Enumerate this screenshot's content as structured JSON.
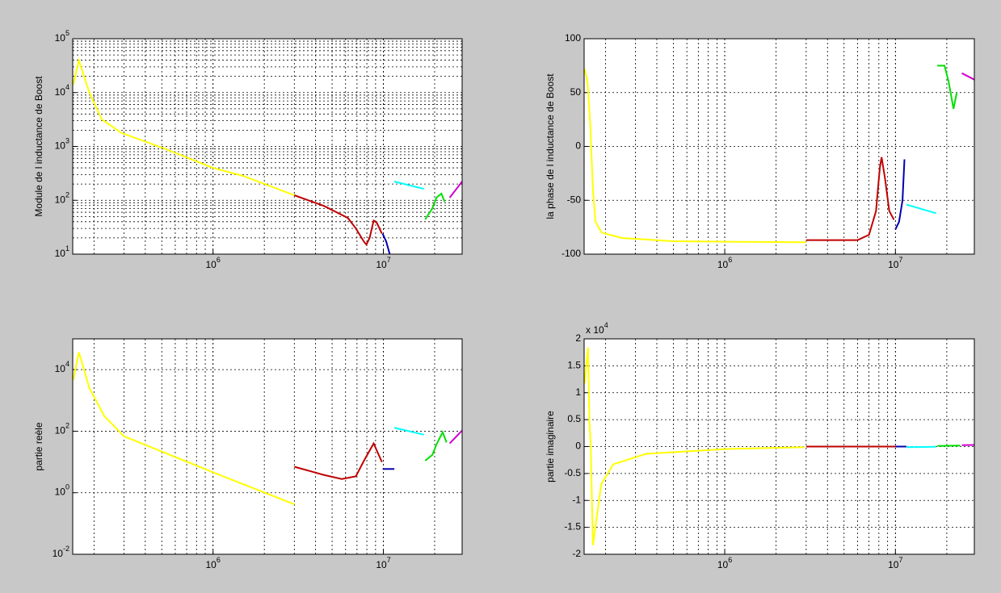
{
  "chart_data": [
    {
      "type": "line",
      "ylabel": "Module de l inductance de Boost",
      "xscale": "log",
      "yscale": "log",
      "xlim": [
        150000,
        29000000
      ],
      "ylim": [
        10,
        100000
      ],
      "xticks": [
        {
          "value": 1000000,
          "label": "10",
          "sup": "6"
        },
        {
          "value": 10000000,
          "label": "10",
          "sup": "7"
        }
      ],
      "yticks": [
        {
          "value": 10,
          "label": "10",
          "sup": "1"
        },
        {
          "value": 100,
          "label": "10",
          "sup": "2"
        },
        {
          "value": 1000,
          "label": "10",
          "sup": "3"
        },
        {
          "value": 10000,
          "label": "10",
          "sup": "4"
        },
        {
          "value": 100000,
          "label": "10",
          "sup": "5"
        }
      ],
      "grid": true,
      "x_minor_grid": true,
      "y_minor_grid": true,
      "series": [
        {
          "color": "#ffff00",
          "x": [
            151000,
            163000,
            188000,
            222000,
            291000,
            502000,
            1000000,
            1500000,
            3000000
          ],
          "values": [
            14000,
            39500,
            9900,
            3180,
            1770,
            950,
            400,
            284,
            124
          ]
        },
        {
          "color": "#c00000",
          "x": [
            3000000,
            4460000,
            6180000,
            6900000,
            7690000,
            7950000,
            8300000,
            8770000,
            9160000,
            9800000
          ],
          "values": [
            124,
            79,
            47,
            30,
            17,
            15,
            20,
            42,
            38,
            24
          ]
        },
        {
          "color": "#0000b0",
          "x": [
            9900000,
            10400000,
            10900000
          ],
          "values": [
            24,
            17,
            10
          ]
        },
        {
          "color": "#00ffff",
          "x": [
            11600000,
            17300000
          ],
          "values": [
            223,
            163
          ]
        },
        {
          "color": "#00e000",
          "x": [
            17600000,
            19400000,
            20500000,
            21900000,
            22900000
          ],
          "values": [
            44,
            71,
            112,
            133,
            94
          ]
        },
        {
          "color": "#d000d0",
          "x": [
            24500000,
            29000000
          ],
          "values": [
            112,
            223
          ]
        }
      ]
    },
    {
      "type": "line",
      "ylabel": "la phase de l inductance de Boost",
      "xscale": "log",
      "yscale": "linear",
      "xlim": [
        150000,
        29000000
      ],
      "ylim": [
        -100,
        100
      ],
      "xticks": [
        {
          "value": 1000000,
          "label": "10",
          "sup": "6"
        },
        {
          "value": 10000000,
          "label": "10",
          "sup": "7"
        }
      ],
      "yticks": [
        -100,
        -50,
        0,
        50,
        100
      ],
      "grid": true,
      "x_minor_grid": true,
      "y_minor_grid": false,
      "series": [
        {
          "color": "#ffff00",
          "x": [
            151000,
            157000,
            163000,
            169000,
            175000,
            190000,
            250000,
            500000,
            1000000,
            3000000
          ],
          "values": [
            72,
            60,
            20,
            -40,
            -70,
            -80,
            -85,
            -88,
            -88.5,
            -89
          ]
        },
        {
          "color": "#c00000",
          "x": [
            3000000,
            6000000,
            7000000,
            7700000,
            8100000,
            8300000,
            8700000,
            9200000,
            9800000
          ],
          "values": [
            -87,
            -87,
            -82,
            -60,
            -20,
            -10,
            -30,
            -60,
            -68
          ]
        },
        {
          "color": "#0000b0",
          "x": [
            10000000,
            10500000,
            11000000,
            11300000
          ],
          "values": [
            -77,
            -70,
            -50,
            -12
          ]
        },
        {
          "color": "#00ffff",
          "x": [
            11600000,
            17300000
          ],
          "values": [
            -54,
            -62
          ]
        },
        {
          "color": "#00e000",
          "x": [
            17600000,
            19400000,
            20500000,
            21900000,
            22900000
          ],
          "values": [
            75,
            75,
            60,
            35,
            50
          ]
        },
        {
          "color": "#d000d0",
          "x": [
            24500000,
            29000000
          ],
          "values": [
            68,
            62
          ]
        }
      ]
    },
    {
      "type": "line",
      "ylabel": "partie reèle",
      "xscale": "log",
      "yscale": "log",
      "xlim": [
        150000,
        29000000
      ],
      "ylim": [
        0.01,
        100000
      ],
      "xticks": [
        {
          "value": 1000000,
          "label": "10",
          "sup": "6"
        },
        {
          "value": 10000000,
          "label": "10",
          "sup": "7"
        }
      ],
      "yticks": [
        {
          "value": 0.01,
          "label": "10",
          "sup": "-2"
        },
        {
          "value": 1,
          "label": "10",
          "sup": "0"
        },
        {
          "value": 100,
          "label": "10",
          "sup": "2"
        },
        {
          "value": 10000,
          "label": "10",
          "sup": "4"
        }
      ],
      "grid": true,
      "x_minor_grid": true,
      "y_minor_grid": false,
      "series": [
        {
          "color": "#ffff00",
          "x": [
            151000,
            163000,
            188000,
            230000,
            300000,
            1000000,
            3000000
          ],
          "values": [
            4600,
            37000,
            2500,
            310,
            68,
            4.6,
            0.42
          ]
        },
        {
          "color": "#c00000",
          "x": [
            3000000,
            4460000,
            5700000,
            6900000,
            7690000,
            8770000,
            9800000
          ],
          "values": [
            7,
            3.8,
            2.8,
            3.4,
            11,
            40,
            10
          ]
        },
        {
          "color": "#0000b0",
          "x": [
            9900000,
            11600000
          ],
          "values": [
            5.9,
            5.9
          ]
        },
        {
          "color": "#00ffff",
          "x": [
            11600000,
            17300000
          ],
          "values": [
            130,
            77
          ]
        },
        {
          "color": "#00e000",
          "x": [
            17600000,
            19400000,
            20500000,
            22300000,
            23500000
          ],
          "values": [
            11,
            17,
            37,
            93,
            43
          ]
        },
        {
          "color": "#d000d0",
          "x": [
            24500000,
            29000000
          ],
          "values": [
            40,
            105
          ]
        }
      ]
    },
    {
      "type": "line",
      "ylabel": "partie imaginaire",
      "xscale": "log",
      "yscale": "linear",
      "xlim": [
        150000,
        29000000
      ],
      "ylim": [
        -20000,
        20000
      ],
      "y_multiplier": {
        "label": "x 10",
        "sup": "4"
      },
      "xticks": [
        {
          "value": 1000000,
          "label": "10",
          "sup": "6"
        },
        {
          "value": 10000000,
          "label": "10",
          "sup": "7"
        }
      ],
      "yticks": [
        {
          "value": -20000,
          "label": "-2"
        },
        {
          "value": -15000,
          "label": "-1.5"
        },
        {
          "value": -10000,
          "label": "-1"
        },
        {
          "value": -5000,
          "label": "-0.5"
        },
        {
          "value": 0,
          "label": "0"
        },
        {
          "value": 5000,
          "label": "0.5"
        },
        {
          "value": 10000,
          "label": "1"
        },
        {
          "value": 15000,
          "label": "1.5"
        },
        {
          "value": 20000,
          "label": "2"
        }
      ],
      "grid": true,
      "x_minor_grid": true,
      "y_minor_grid": false,
      "series": [
        {
          "color": "#ffff00",
          "x": [
            151000,
            158000,
            161000,
            164000,
            169000,
            189000,
            222000,
            346000,
            1030000,
            2930000
          ],
          "values": [
            11700,
            18400,
            5000,
            0,
            -18300,
            -7000,
            -3300,
            -1350,
            -450,
            -100
          ]
        },
        {
          "color": "#c00000",
          "x": [
            3000000,
            10000000
          ],
          "values": [
            0,
            0
          ]
        },
        {
          "color": "#0000b0",
          "x": [
            10000000,
            11600000
          ],
          "values": [
            0,
            0
          ]
        },
        {
          "color": "#00ffff",
          "x": [
            11600000,
            17300000
          ],
          "values": [
            -100,
            -50
          ]
        },
        {
          "color": "#00e000",
          "x": [
            17600000,
            24000000
          ],
          "values": [
            100,
            200
          ]
        },
        {
          "color": "#d000d0",
          "x": [
            24500000,
            29000000
          ],
          "values": [
            250,
            300
          ]
        }
      ]
    }
  ]
}
